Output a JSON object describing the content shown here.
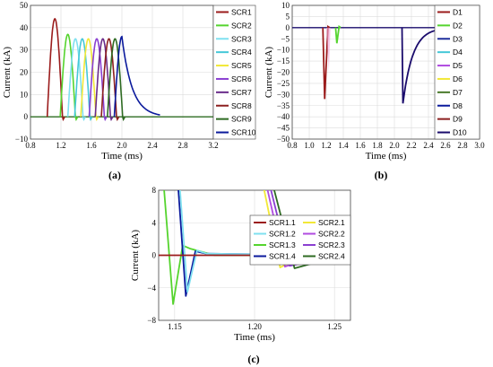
{
  "chart_data": [
    {
      "id": "a",
      "type": "line",
      "panel_label": "(a)",
      "xlabel": "Time (ms)",
      "ylabel": "Current (kA)",
      "xlim": [
        0.8,
        3.2
      ],
      "ylim": [
        -10,
        50
      ],
      "xticks": [
        0.8,
        1.2,
        1.6,
        2.0,
        2.4,
        2.8,
        3.2
      ],
      "xtick_labels": [
        "0.8",
        "1.2",
        "1.6",
        "2.0",
        "2.4",
        "2.8",
        "3.2"
      ],
      "yticks": [
        -10,
        0,
        10,
        20,
        30,
        40,
        50
      ],
      "ytick_labels": [
        "−10",
        "0",
        "10",
        "20",
        "30",
        "40",
        "50"
      ],
      "grid": true,
      "legend": "right",
      "series": [
        {
          "name": "SCR1",
          "color": "#9b1c1c",
          "start": 1.02,
          "peak": 44,
          "width": 0.2
        },
        {
          "name": "SCR2",
          "color": "#55d42e",
          "start": 1.19,
          "peak": 37,
          "width": 0.2
        },
        {
          "name": "SCR3",
          "color": "#7fe0f0",
          "start": 1.29,
          "peak": 35,
          "width": 0.2
        },
        {
          "name": "SCR4",
          "color": "#45c8d8",
          "start": 1.38,
          "peak": 35,
          "width": 0.2
        },
        {
          "name": "SCR5",
          "color": "#f2e837",
          "start": 1.46,
          "peak": 35,
          "width": 0.2
        },
        {
          "name": "SCR6",
          "color": "#8a3fd1",
          "start": 1.57,
          "peak": 35,
          "width": 0.2
        },
        {
          "name": "SCR7",
          "color": "#6a2c8a",
          "start": 1.65,
          "peak": 35,
          "width": 0.2
        },
        {
          "name": "SCR8",
          "color": "#8c1f1f",
          "start": 1.73,
          "peak": 35,
          "width": 0.2
        },
        {
          "name": "SCR9",
          "color": "#2e6b22",
          "start": 1.81,
          "peak": 35,
          "width": 0.2
        },
        {
          "name": "SCR10",
          "color": "#0b1a9c",
          "start": 1.9,
          "peak": 36,
          "width": 0.2,
          "tail": true
        }
      ]
    },
    {
      "id": "b",
      "type": "line",
      "panel_label": "(b)",
      "xlabel": "Time (ms)",
      "ylabel": "Current (kA)",
      "xlim": [
        0.8,
        3.0
      ],
      "ylim": [
        -50,
        10
      ],
      "xticks": [
        0.8,
        1.0,
        1.2,
        1.4,
        1.6,
        1.8,
        2.0,
        2.2,
        2.4,
        2.6,
        2.8,
        3.0
      ],
      "xtick_labels": [
        "0.8",
        "1.0",
        "1.2",
        "1.4",
        "1.6",
        "1.8",
        "2.0",
        "2.2",
        "2.4",
        "2.6",
        "2.8",
        "3.0"
      ],
      "yticks": [
        -50,
        -45,
        -40,
        -35,
        -30,
        -25,
        -20,
        -15,
        -10,
        -5,
        0,
        5,
        10
      ],
      "ytick_labels": [
        "−50",
        "−45",
        "−40",
        "−35",
        "−30",
        "−25",
        "−20",
        "−15",
        "−10",
        "−5",
        "0",
        "5",
        "10"
      ],
      "grid": true,
      "legend": "right",
      "series": [
        {
          "name": "D1",
          "color": "#9b1c1c"
        },
        {
          "name": "D2",
          "color": "#55d42e"
        },
        {
          "name": "D3",
          "color": "#1f2f9c"
        },
        {
          "name": "D4",
          "color": "#45c8d8"
        },
        {
          "name": "D5",
          "color": "#b04be0"
        },
        {
          "name": "D6",
          "color": "#f2e837"
        },
        {
          "name": "D7",
          "color": "#4a7a2a"
        },
        {
          "name": "D8",
          "color": "#0b1a9c"
        },
        {
          "name": "D9",
          "color": "#8c1f1f"
        },
        {
          "name": "D10",
          "color": "#1a0b6c"
        }
      ],
      "pulses": [
        {
          "series": "D1",
          "start": 1.16,
          "min": -32,
          "end": 1.22
        },
        {
          "series": "D2",
          "start": 1.31,
          "min": -7,
          "end": 1.35
        },
        {
          "series": "D10",
          "start": 2.09,
          "min": -34,
          "end": 2.55
        }
      ]
    },
    {
      "id": "c",
      "type": "line",
      "panel_label": "(c)",
      "xlabel": "Time (ms)",
      "ylabel": "Current (kA)",
      "xlim": [
        1.14,
        1.26
      ],
      "ylim": [
        -8,
        8
      ],
      "xticks": [
        1.15,
        1.2,
        1.25
      ],
      "xtick_labels": [
        "1.15",
        "1.20",
        "1.25"
      ],
      "yticks": [
        -8,
        -4,
        0,
        4,
        8
      ],
      "ytick_labels": [
        "−8",
        "−4",
        "0",
        "4",
        "8"
      ],
      "grid": true,
      "legend": "top-right",
      "series": [
        {
          "name": "SCR1.1",
          "color": "#9b1c1c"
        },
        {
          "name": "SCR1.2",
          "color": "#7fe0f0"
        },
        {
          "name": "SCR1.3",
          "color": "#55d42e"
        },
        {
          "name": "SCR1.4",
          "color": "#0b1a9c"
        },
        {
          "name": "SCR2.1",
          "color": "#f2e837"
        },
        {
          "name": "SCR2.2",
          "color": "#b04be0"
        },
        {
          "name": "SCR2.3",
          "color": "#8a3fd1"
        },
        {
          "name": "SCR2.4",
          "color": "#2e6b22"
        }
      ]
    }
  ]
}
